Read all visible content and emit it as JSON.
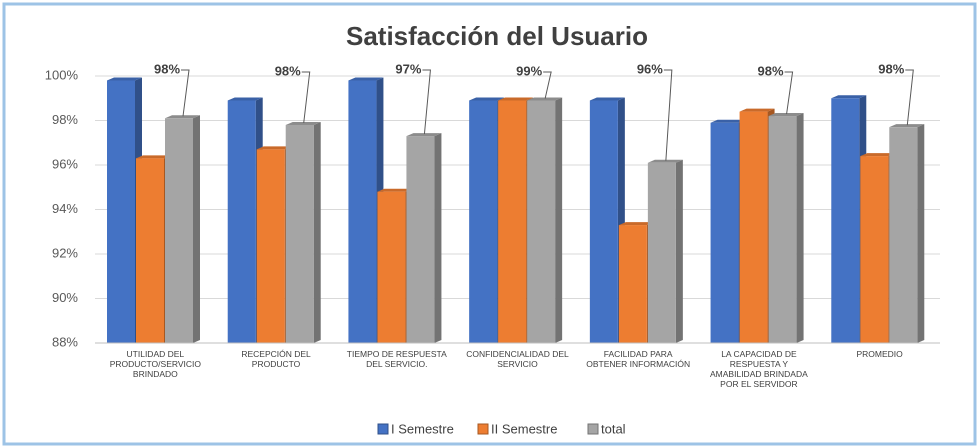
{
  "chart_data": {
    "type": "bar3d",
    "title": "Satisfacción del Usuario",
    "categories": [
      "UTILIDAD DEL PRODUCTO/SERVICIO BRINDADO",
      "RECEPCIÓN DEL PRODUCTO",
      "TIEMPO DE RESPUESTA DEL SERVICIO.",
      "CONFIDENCIALIDAD DEL SERVICIO",
      "FACILIDAD PARA OBTENER INFORMACIÓN",
      "LA CAPACIDAD DE RESPUESTA Y AMABILIDAD BRINDADA POR EL SERVIDOR",
      "PROMEDIO"
    ],
    "series": [
      {
        "name": "I Semestre",
        "color": "#4472c4",
        "values": [
          99.8,
          98.9,
          99.8,
          98.9,
          98.9,
          97.9,
          99.0
        ]
      },
      {
        "name": "II Semestre",
        "color": "#ed7d31",
        "values": [
          96.3,
          96.7,
          94.8,
          98.9,
          93.3,
          98.4,
          96.4
        ]
      },
      {
        "name": "total",
        "color": "#a5a5a5",
        "values": [
          98.1,
          97.8,
          97.3,
          98.9,
          96.1,
          98.2,
          97.7
        ],
        "value_labels": [
          "98%",
          "98%",
          "97%",
          "99%",
          "96%",
          "98%",
          "98%"
        ]
      }
    ],
    "ylim": [
      88,
      100
    ],
    "yticks": [
      {
        "value": 88,
        "label": "88%"
      },
      {
        "value": 90,
        "label": "90%"
      },
      {
        "value": 92,
        "label": "92%"
      },
      {
        "value": 94,
        "label": "94%"
      },
      {
        "value": 96,
        "label": "96%"
      },
      {
        "value": 98,
        "label": "98%"
      },
      {
        "value": 100,
        "label": "100%"
      }
    ],
    "grid": true,
    "legend": "bottom"
  }
}
